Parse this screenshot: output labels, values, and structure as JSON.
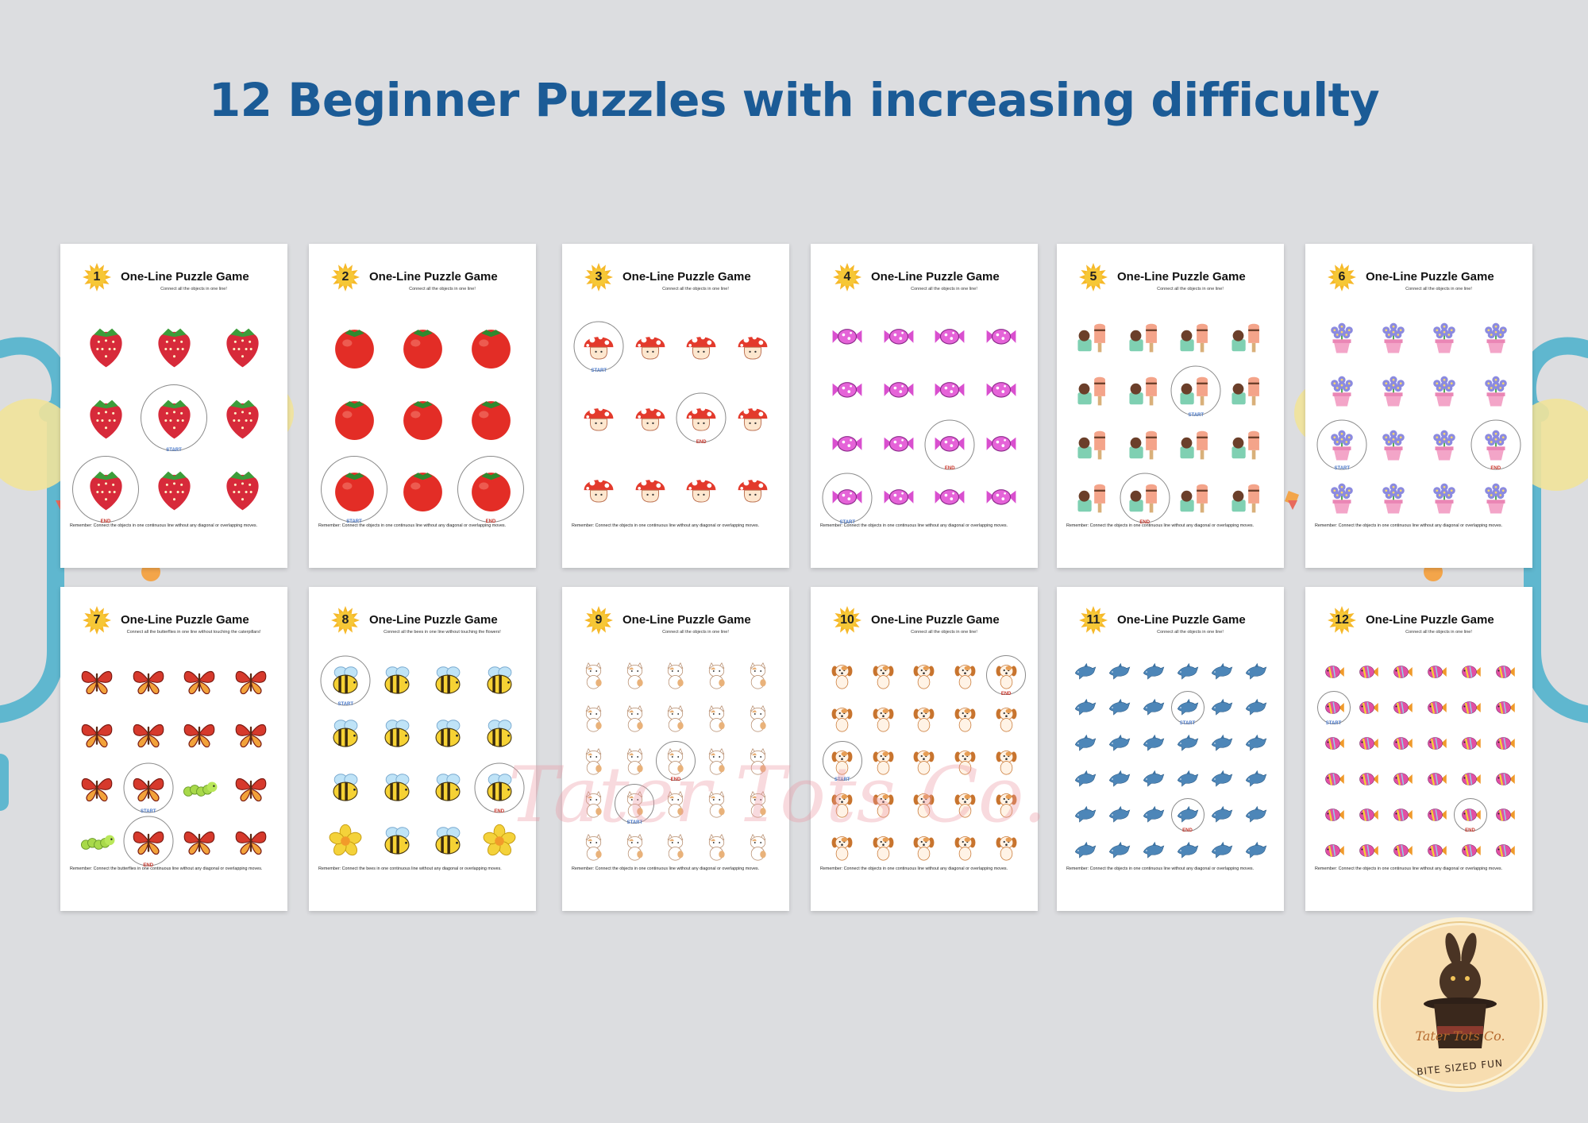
{
  "page": {
    "title": "12 Beginner Puzzles with increasing difficulty",
    "watermark": "Tater Tots Co.",
    "brand": {
      "name": "Tater Tots Co.",
      "tagline": "BITE SIZED FUN"
    },
    "colors": {
      "title": "#1b5b96",
      "background": "#dcdde0",
      "start": "#4a78c8",
      "end": "#c8362b"
    }
  },
  "cards": [
    {
      "number": "1",
      "title": "One-Line Puzzle Game",
      "subtitle": "Connect all the objects in one line!",
      "icon": "strawberry-icon",
      "cols": 3,
      "rows": 3,
      "start": 4,
      "end": 6,
      "note": "Remember: Connect the objects in one continuous line without any diagonal or overlapping moves."
    },
    {
      "number": "2",
      "title": "One-Line Puzzle Game",
      "subtitle": "Connect all the objects in one line!",
      "icon": "tomato-icon",
      "cols": 3,
      "rows": 3,
      "start": 6,
      "end": 8,
      "note": "Remember: Connect the objects in one continuous line without any diagonal or overlapping moves."
    },
    {
      "number": "3",
      "title": "One-Line Puzzle Game",
      "subtitle": "Connect all the objects in one line!",
      "icon": "mushroom-icon",
      "cols": 4,
      "rows": 3,
      "start": 0,
      "end": 6,
      "note": "Remember: Connect the objects in one continuous line without any diagonal or overlapping moves."
    },
    {
      "number": "4",
      "title": "One-Line Puzzle Game",
      "subtitle": "Connect all the objects in one line!",
      "icon": "candy-icon",
      "cols": 4,
      "rows": 4,
      "start": 12,
      "end": 10,
      "note": "Remember: Connect the objects in one continuous line without any diagonal or overlapping moves."
    },
    {
      "number": "5",
      "title": "One-Line Puzzle Game",
      "subtitle": "Connect all the objects in one line!",
      "icon": "dessert-icon",
      "cols": 4,
      "rows": 4,
      "start": 6,
      "end": 13,
      "note": "Remember: Connect the objects in one continuous line without any diagonal or overlapping moves."
    },
    {
      "number": "6",
      "title": "One-Line Puzzle Game",
      "subtitle": "Connect all the objects in one line!",
      "icon": "flowerpot-icon",
      "cols": 4,
      "rows": 4,
      "start": 8,
      "end": 11,
      "note": "Remember: Connect the objects in one continuous line without any diagonal or overlapping moves."
    },
    {
      "number": "7",
      "title": "One-Line Puzzle Game",
      "subtitle": "Connect all the butterflies in one line without touching the caterpillars!",
      "icon": "butterfly-icon",
      "cols": 4,
      "rows": 4,
      "start": 9,
      "end": 13,
      "obstacles": [
        10,
        12
      ],
      "obstacle_icon": "caterpillar-icon",
      "note": "Remember: Connect the butterflies in one continuous line without any diagonal or overlapping moves."
    },
    {
      "number": "8",
      "title": "One-Line Puzzle Game",
      "subtitle": "Connect all the bees in one line without touching the flowers!",
      "icon": "bee-icon",
      "cols": 4,
      "rows": 4,
      "start": 0,
      "end": 11,
      "obstacles": [
        12,
        15
      ],
      "obstacle_icon": "flower-icon",
      "note": "Remember: Connect the bees in one continuous line without any diagonal or overlapping moves."
    },
    {
      "number": "9",
      "title": "One-Line Puzzle Game",
      "subtitle": "Connect all the objects in one line!",
      "icon": "cat-icon",
      "cols": 5,
      "rows": 5,
      "start": 16,
      "end": 12,
      "note": "Remember: Connect the objects in one continuous line without any diagonal or overlapping moves."
    },
    {
      "number": "10",
      "title": "One-Line Puzzle Game",
      "subtitle": "Connect all the objects in one line!",
      "icon": "puppy-icon",
      "cols": 5,
      "rows": 5,
      "start": 10,
      "end": 4,
      "note": "Remember: Connect the objects in one continuous line without any diagonal or overlapping moves."
    },
    {
      "number": "11",
      "title": "One-Line Puzzle Game",
      "subtitle": "Connect all the objects in one line!",
      "icon": "dolphin-icon",
      "cols": 6,
      "rows": 6,
      "start": 9,
      "end": 27,
      "note": "Remember: Connect the objects in one continuous line without any diagonal or overlapping moves."
    },
    {
      "number": "12",
      "title": "One-Line Puzzle Game",
      "subtitle": "Connect all the objects in one line!",
      "icon": "fish-icon",
      "cols": 6,
      "rows": 6,
      "start": 6,
      "end": 28,
      "note": "Remember: Connect the objects in one continuous line without any diagonal or overlapping moves."
    }
  ],
  "labels": {
    "start": "START",
    "end": "END"
  }
}
